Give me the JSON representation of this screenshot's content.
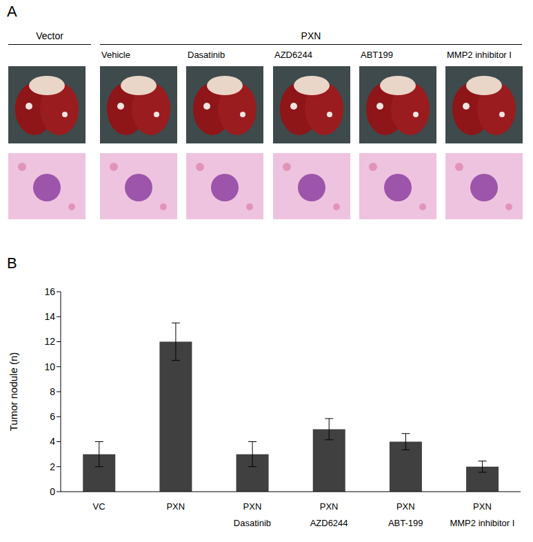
{
  "panel_a": {
    "label": "A",
    "groups": [
      "Vector",
      "PXN"
    ],
    "columns": [
      "Vehicle",
      "Dasatinib",
      "AZD6244",
      "ABT199",
      "MMP2 inhibitor I"
    ]
  },
  "chart_data": {
    "panel_label": "B",
    "type": "bar",
    "y_label": "Tumor nodule (n)",
    "categories": [
      "VC",
      "PXN",
      "PXN\nDasatinib",
      "PXN\nAZD6244",
      "PXN\nABT-199",
      "PXN\nMMP2 inhibitor I"
    ],
    "values": [
      3,
      12,
      3,
      5,
      4,
      2
    ],
    "errors": [
      1,
      1.5,
      1,
      0.85,
      0.65,
      0.45
    ],
    "color": "#404040",
    "ylim": [
      0,
      16
    ],
    "yticks": [
      0,
      2,
      4,
      6,
      8,
      10,
      12,
      14,
      16
    ],
    "grid": false
  }
}
